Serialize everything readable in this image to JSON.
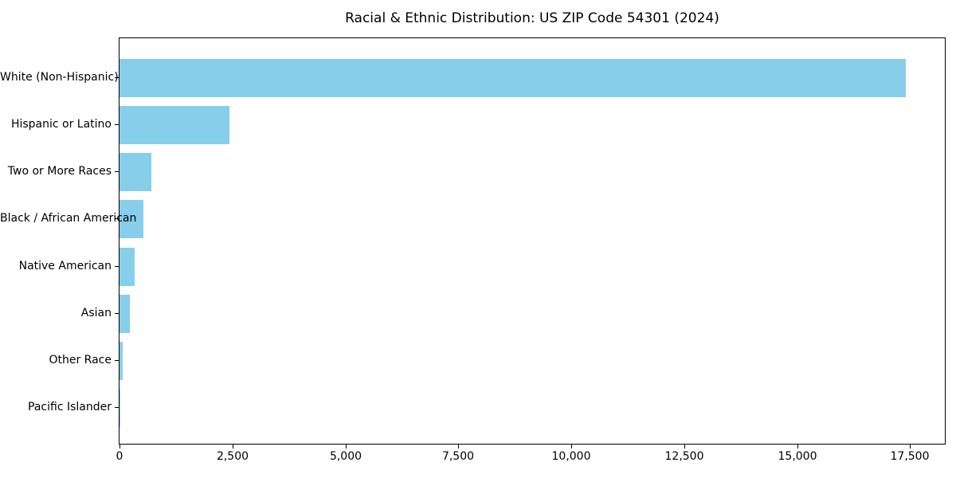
{
  "chart_data": {
    "type": "bar",
    "orientation": "horizontal",
    "title": "Racial & Ethnic Distribution: US ZIP Code 54301 (2024)",
    "categories": [
      "White (Non-Hispanic)",
      "Hispanic or Latino",
      "Two or More Races",
      "Black / African American",
      "Native American",
      "Asian",
      "Other Race",
      "Pacific Islander"
    ],
    "values": [
      17400,
      2430,
      700,
      530,
      335,
      230,
      75,
      15
    ],
    "xlabel": "",
    "ylabel": "",
    "xlim": [
      0,
      18270
    ],
    "xticks": [
      0,
      2500,
      5000,
      7500,
      10000,
      12500,
      15000,
      17500
    ],
    "xtick_labels": [
      "0",
      "2,500",
      "5,000",
      "7,500",
      "10,000",
      "12,500",
      "15,000",
      "17,500"
    ],
    "bar_color": "#87CEEB",
    "axis_color": "#000000",
    "grid": false,
    "legend": null
  }
}
